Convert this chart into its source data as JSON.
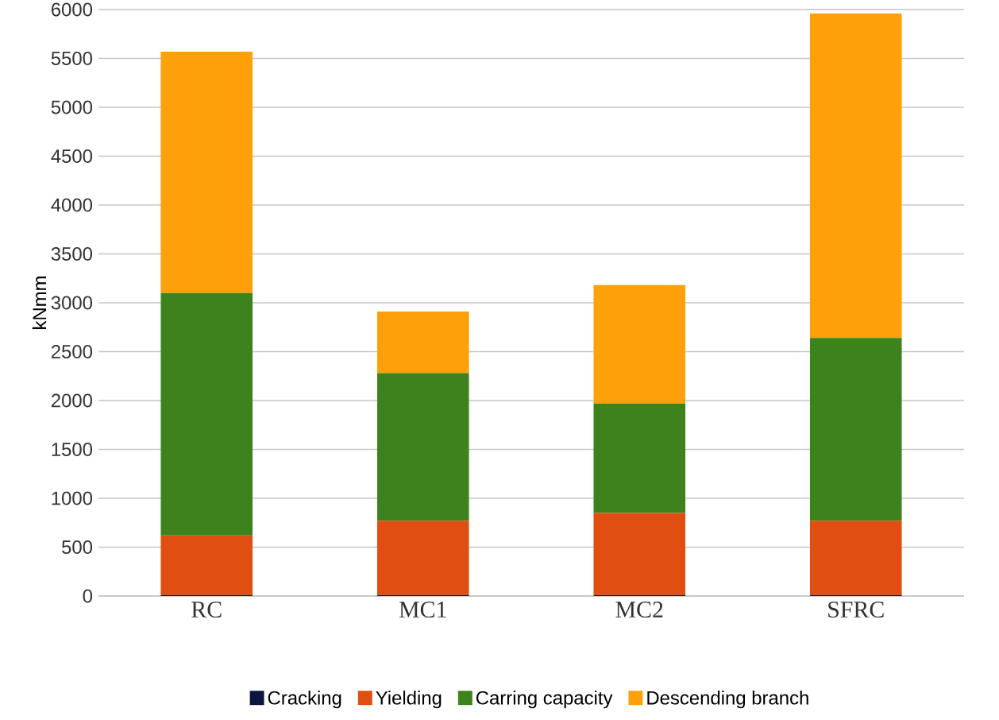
{
  "chart_data": {
    "type": "bar",
    "stacked": true,
    "ylabel": "kNmm",
    "categories": [
      "RC",
      "MC1",
      "MC2",
      "SFRC"
    ],
    "series": [
      {
        "name": "Cracking",
        "color": "#0c1640",
        "values": [
          10,
          10,
          10,
          10
        ]
      },
      {
        "name": "Yielding",
        "color": "#e04e12",
        "values": [
          610,
          760,
          840,
          760
        ]
      },
      {
        "name": "Carring capacity",
        "color": "#3e821e",
        "values": [
          2480,
          1510,
          1120,
          1870
        ]
      },
      {
        "name": "Descending branch",
        "color": "#fea00a",
        "values": [
          2470,
          630,
          1210,
          3320
        ]
      }
    ],
    "ylim": [
      0,
      6000
    ],
    "yticks": [
      0,
      500,
      1000,
      1500,
      2000,
      2500,
      3000,
      3500,
      4000,
      4500,
      5000,
      5500,
      6000
    ],
    "grid": "y",
    "legend": "bottom"
  }
}
